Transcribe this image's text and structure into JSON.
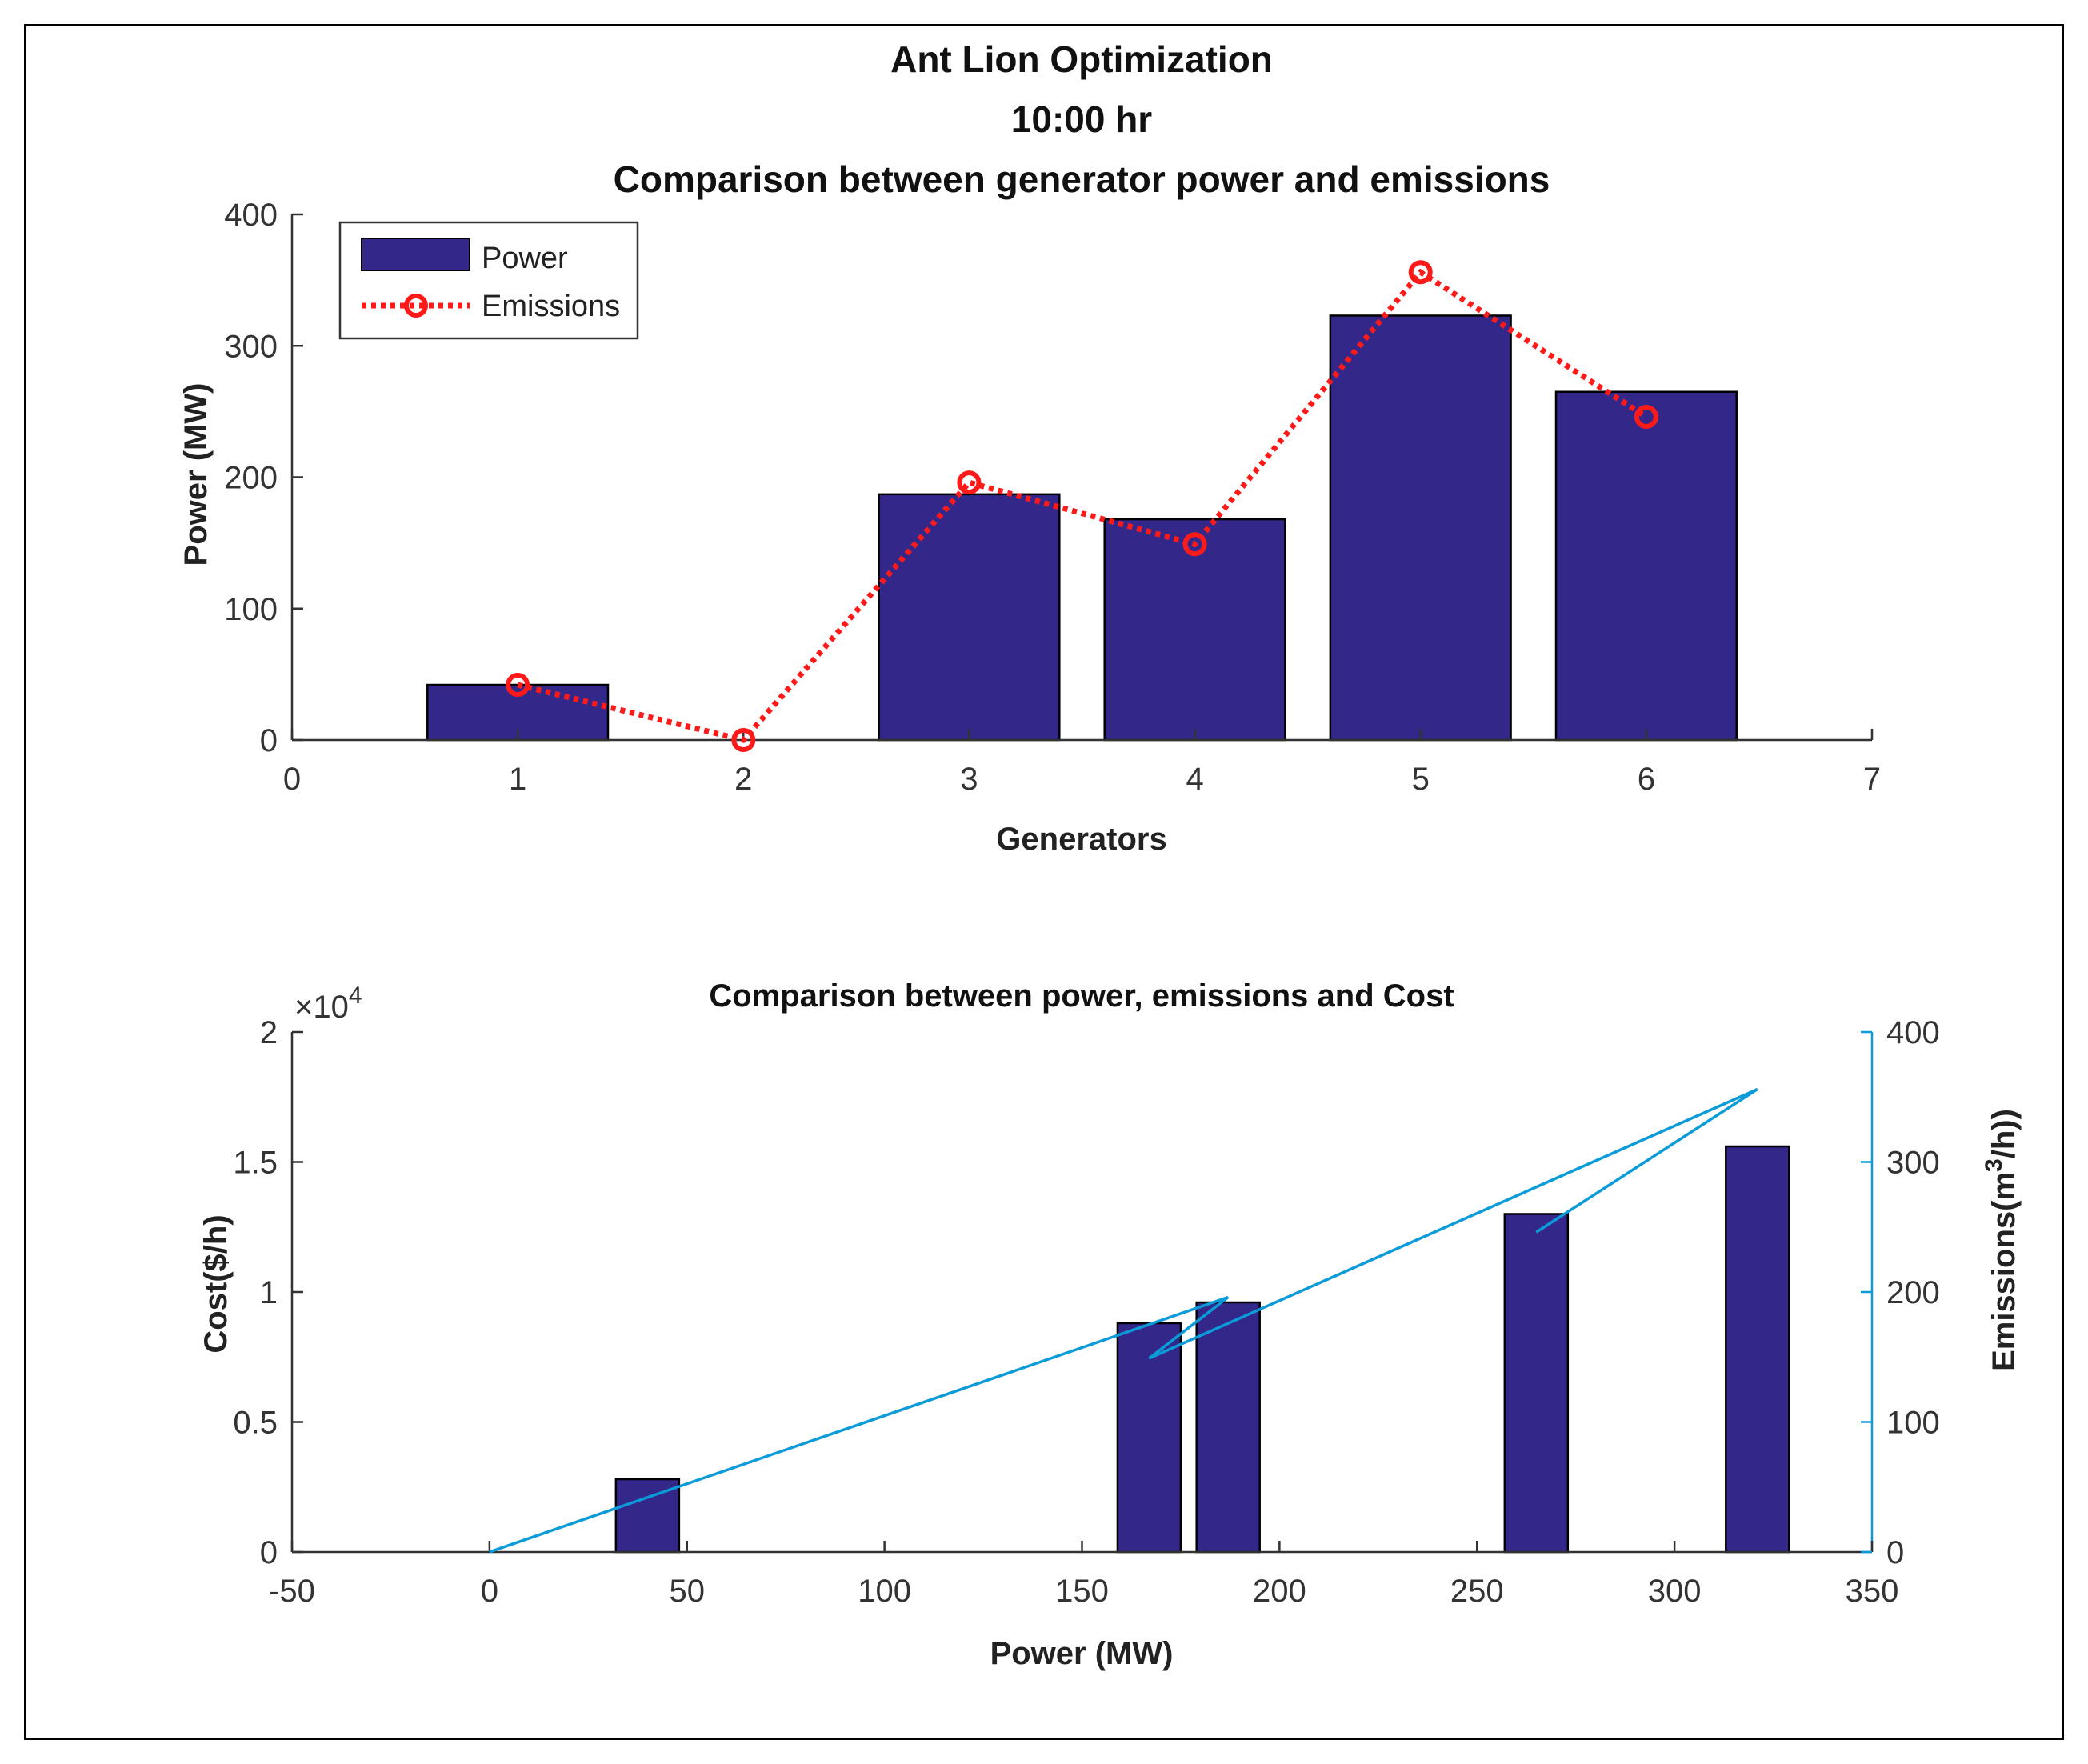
{
  "colors": {
    "bar_fill": "#33288A",
    "emissions_line": "#FF1A1A",
    "right_axis": "#0A9BD8",
    "axis": "#333333"
  },
  "chart_data": [
    {
      "type": "bar",
      "title_lines": [
        "Ant Lion Optimization",
        "10:00 hr",
        "Comparison between generator power and emissions"
      ],
      "xlabel": "Generators",
      "ylabel": "Power (MW)",
      "xlim": [
        0,
        7
      ],
      "ylim": [
        0,
        400
      ],
      "xticks": [
        "0",
        "1",
        "2",
        "3",
        "4",
        "5",
        "6",
        "7"
      ],
      "yticks": [
        "0",
        "100",
        "200",
        "300",
        "400"
      ],
      "legend_location": "top-left",
      "categories": [
        1,
        2,
        3,
        4,
        5,
        6
      ],
      "series": [
        {
          "name": "Power",
          "kind": "bar",
          "values": [
            42,
            0,
            187,
            168,
            323,
            265
          ]
        },
        {
          "name": "Emissions",
          "kind": "line-dotted-circle-markers",
          "values": [
            42,
            0,
            196,
            149,
            356,
            246
          ]
        }
      ]
    },
    {
      "type": "bar",
      "title": "Comparison between power, emissions and Cost",
      "xlabel": "Power (MW)",
      "ylabel_left": "Cost($/h)",
      "ylabel_right_prefix": "Emissions(m",
      "ylabel_right_sup": "3",
      "ylabel_right_suffix": "/h))",
      "exponent_label": "×10",
      "exponent_power": "4",
      "xlim": [
        -50,
        350
      ],
      "ylim_left": [
        0,
        2
      ],
      "ylim_right": [
        0,
        400
      ],
      "xticks": [
        "-50",
        "0",
        "50",
        "100",
        "150",
        "200",
        "250",
        "300",
        "350"
      ],
      "yticks_left": [
        "0",
        "0.5",
        "1",
        "1.5",
        "2"
      ],
      "yticks_right": [
        "0",
        "100",
        "200",
        "300",
        "400"
      ],
      "bars": {
        "name": "Cost",
        "power": [
          40,
          167,
          187,
          265,
          321
        ],
        "cost_x1e4": [
          0.28,
          0.88,
          0.96,
          1.3,
          1.56
        ],
        "bar_width_mw": 16
      },
      "line": {
        "name": "Emissions",
        "power": [
          0,
          40,
          187,
          167,
          321,
          265
        ],
        "emissions": [
          0,
          42,
          196,
          149,
          356,
          246
        ]
      }
    }
  ]
}
